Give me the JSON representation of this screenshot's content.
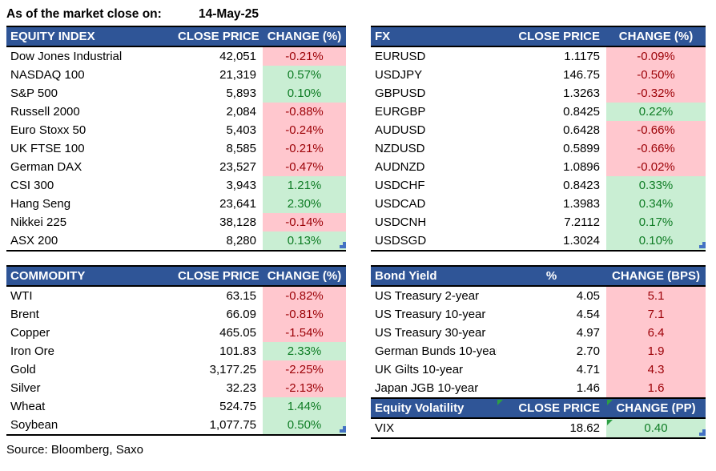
{
  "meta": {
    "as_of_label": "As of the market close on:",
    "as_of_date": "14-May-25",
    "source": "Source: Bloomberg, Saxo"
  },
  "colors": {
    "header_bg": "#2F5597",
    "header_text": "#FFFFFF",
    "negative_bg": "#FFC7CE",
    "negative_text": "#9C0006",
    "positive_bg": "#C9EED3",
    "positive_text": "#0E7C24",
    "comment_marker_green": "#2E9E44",
    "resize_handle_blue": "#4472C4"
  },
  "tables": {
    "equity_index": {
      "headers": [
        "EQUITY INDEX",
        "CLOSE PRICE",
        "CHANGE (%)"
      ],
      "rows": [
        {
          "name": "Dow Jones Industrial",
          "close": "42,051",
          "change": "-0.21%",
          "tone": "red"
        },
        {
          "name": "NASDAQ 100",
          "close": "21,319",
          "change": "0.57%",
          "tone": "green"
        },
        {
          "name": "S&P 500",
          "close": "5,893",
          "change": "0.10%",
          "tone": "green"
        },
        {
          "name": "Russell 2000",
          "close": "2,084",
          "change": "-0.88%",
          "tone": "red"
        },
        {
          "name": "Euro Stoxx 50",
          "close": "5,403",
          "change": "-0.24%",
          "tone": "red"
        },
        {
          "name": "UK FTSE 100",
          "close": "8,585",
          "change": "-0.21%",
          "tone": "red"
        },
        {
          "name": "German DAX",
          "close": "23,527",
          "change": "-0.47%",
          "tone": "red"
        },
        {
          "name": "CSI 300",
          "close": "3,943",
          "change": "1.21%",
          "tone": "green"
        },
        {
          "name": "Hang Seng",
          "close": "23,641",
          "change": "2.30%",
          "tone": "green"
        },
        {
          "name": "Nikkei 225",
          "close": "38,128",
          "change": "-0.14%",
          "tone": "red"
        },
        {
          "name": "ASX 200",
          "close": "8,280",
          "change": "0.13%",
          "tone": "green"
        }
      ]
    },
    "fx": {
      "headers": [
        "FX",
        "CLOSE PRICE",
        "CHANGE (%)"
      ],
      "rows": [
        {
          "name": "EURUSD",
          "close": "1.1175",
          "change": "-0.09%",
          "tone": "red"
        },
        {
          "name": "USDJPY",
          "close": "146.75",
          "change": "-0.50%",
          "tone": "red"
        },
        {
          "name": "GBPUSD",
          "close": "1.3263",
          "change": "-0.32%",
          "tone": "red"
        },
        {
          "name": "EURGBP",
          "close": "0.8425",
          "change": "0.22%",
          "tone": "green"
        },
        {
          "name": "AUDUSD",
          "close": "0.6428",
          "change": "-0.66%",
          "tone": "red"
        },
        {
          "name": "NZDUSD",
          "close": "0.5899",
          "change": "-0.66%",
          "tone": "red"
        },
        {
          "name": "AUDNZD",
          "close": "1.0896",
          "change": "-0.02%",
          "tone": "red"
        },
        {
          "name": "USDCHF",
          "close": "0.8423",
          "change": "0.33%",
          "tone": "green"
        },
        {
          "name": "USDCAD",
          "close": "1.3983",
          "change": "0.34%",
          "tone": "green"
        },
        {
          "name": "USDCNH",
          "close": "7.2112",
          "change": "0.17%",
          "tone": "green"
        },
        {
          "name": "USDSGD",
          "close": "1.3024",
          "change": "0.10%",
          "tone": "green"
        }
      ]
    },
    "commodity": {
      "headers": [
        "COMMODITY",
        "CLOSE PRICE",
        "CHANGE (%)"
      ],
      "rows": [
        {
          "name": "WTI",
          "close": "63.15",
          "change": "-0.82%",
          "tone": "red"
        },
        {
          "name": "Brent",
          "close": "66.09",
          "change": "-0.81%",
          "tone": "red"
        },
        {
          "name": "Copper",
          "close": "465.05",
          "change": "-1.54%",
          "tone": "red"
        },
        {
          "name": "Iron Ore",
          "close": "101.83",
          "change": "2.33%",
          "tone": "green"
        },
        {
          "name": "Gold",
          "close": "3,177.25",
          "change": "-2.25%",
          "tone": "red"
        },
        {
          "name": "Silver",
          "close": "32.23",
          "change": "-2.13%",
          "tone": "red"
        },
        {
          "name": "Wheat",
          "close": "524.75",
          "change": "1.44%",
          "tone": "green"
        },
        {
          "name": "Soybean",
          "close": "1,077.75",
          "change": "0.50%",
          "tone": "green"
        }
      ]
    },
    "bond_yield": {
      "headers": [
        "Bond Yield",
        "%",
        "CHANGE (BPS)"
      ],
      "rows": [
        {
          "name": "US Treasury 2-year",
          "close": "4.05",
          "change": "5.1",
          "tone": "red"
        },
        {
          "name": "US Treasury 10-year",
          "close": "4.54",
          "change": "7.1",
          "tone": "red"
        },
        {
          "name": "US Treasury 30-year",
          "close": "4.97",
          "change": "6.4",
          "tone": "red"
        },
        {
          "name": "German Bunds 10-year",
          "close": "2.70",
          "change": "1.9",
          "tone": "red"
        },
        {
          "name": "UK Gilts 10-year",
          "close": "4.71",
          "change": "4.3",
          "tone": "red"
        },
        {
          "name": "Japan JGB 10-year",
          "close": "1.46",
          "change": "1.6",
          "tone": "red"
        }
      ]
    },
    "equity_volatility": {
      "headers": [
        "Equity Volatility",
        "CLOSE PRICE",
        "CHANGE (PP)"
      ],
      "rows": [
        {
          "name": "VIX",
          "close": "18.62",
          "change": "0.40",
          "tone": "green",
          "marker": true
        }
      ]
    }
  }
}
